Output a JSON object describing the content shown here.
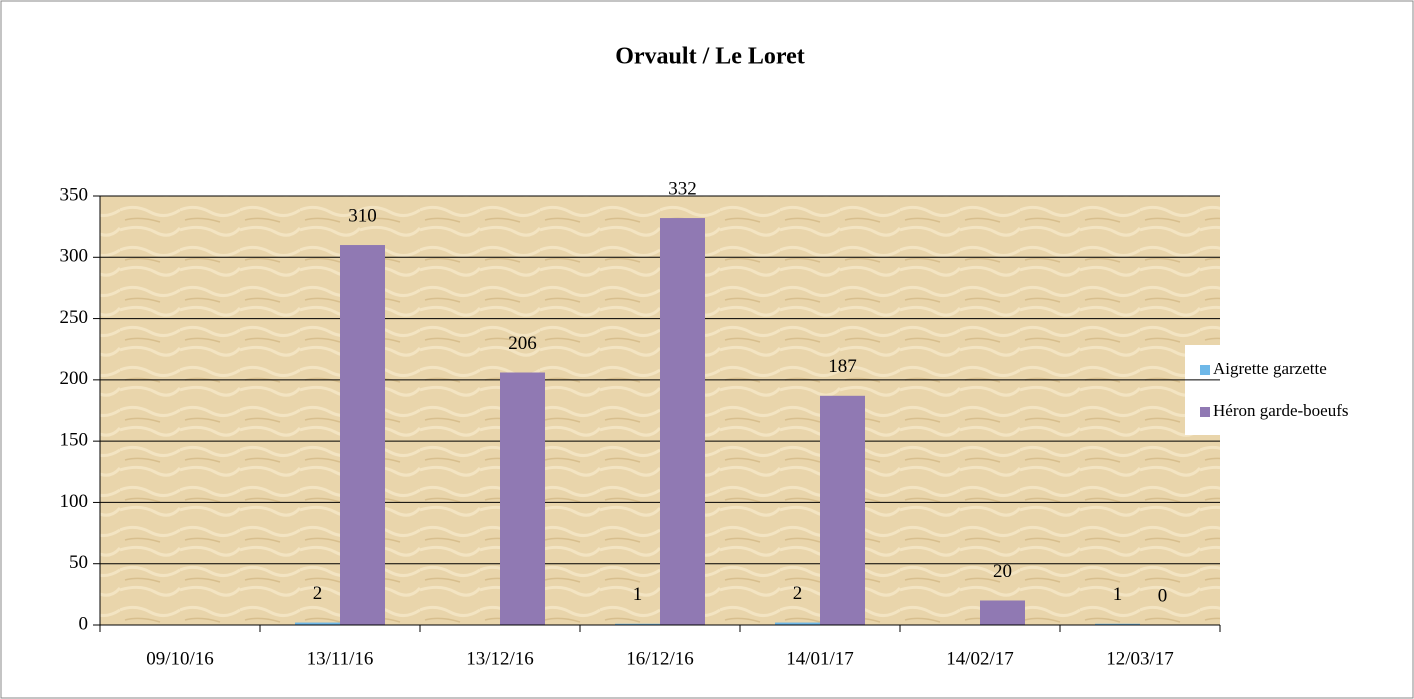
{
  "chart_data": {
    "type": "bar",
    "title": "Orvault / Le Loret",
    "categories": [
      "09/10/16",
      "13/11/16",
      "13/12/16",
      "16/12/16",
      "14/01/17",
      "14/02/17",
      "12/03/17"
    ],
    "series": [
      {
        "name": "Aigrette garzette",
        "color": "#6fb8e8",
        "values": [
          null,
          2,
          null,
          1,
          2,
          null,
          1
        ]
      },
      {
        "name": "Héron garde-boeufs",
        "color": "#9079b3",
        "values": [
          null,
          310,
          206,
          332,
          187,
          20,
          0
        ]
      }
    ],
    "ylim": [
      0,
      350
    ],
    "yticks": [
      0,
      50,
      100,
      150,
      200,
      250,
      300,
      350
    ],
    "grid": true,
    "legend": "right"
  }
}
